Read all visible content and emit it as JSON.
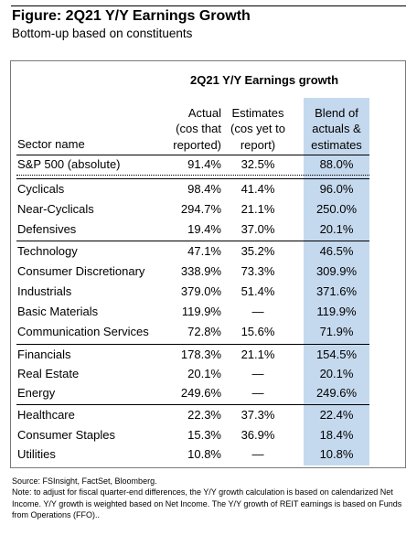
{
  "figure": {
    "title": "Figure: 2Q21 Y/Y Earnings Growth",
    "subtitle": "Bottom-up based on constituents"
  },
  "table": {
    "group_title": "2Q21 Y/Y Earnings growth",
    "col_sector": "Sector name",
    "col_actual": [
      "Actual",
      "(cos that",
      "reported)"
    ],
    "col_estimates": [
      "Estimates",
      "(cos yet to",
      "report)"
    ],
    "col_blend": [
      "Blend of",
      "actuals &",
      "estimates"
    ],
    "highlight_color": "#c5d9ee",
    "rows": [
      {
        "name": "S&P 500 (absolute)",
        "actual": "91.4%",
        "estimates": "32.5%",
        "blend": "88.0%"
      },
      {
        "name": "Cyclicals",
        "actual": "98.4%",
        "estimates": "41.4%",
        "blend": "96.0%"
      },
      {
        "name": "Near-Cyclicals",
        "actual": "294.7%",
        "estimates": "21.1%",
        "blend": "250.0%"
      },
      {
        "name": "Defensives",
        "actual": "19.4%",
        "estimates": "37.0%",
        "blend": "20.1%"
      },
      {
        "name": "Technology",
        "actual": "47.1%",
        "estimates": "35.2%",
        "blend": "46.5%"
      },
      {
        "name": "Consumer Discretionary",
        "actual": "338.9%",
        "estimates": "73.3%",
        "blend": "309.9%"
      },
      {
        "name": "Industrials",
        "actual": "379.0%",
        "estimates": "51.4%",
        "blend": "371.6%"
      },
      {
        "name": "Basic Materials",
        "actual": "119.9%",
        "estimates": "—",
        "blend": "119.9%"
      },
      {
        "name": "Communication Services",
        "actual": "72.8%",
        "estimates": "15.6%",
        "blend": "71.9%"
      },
      {
        "name": "Financials",
        "actual": "178.3%",
        "estimates": "21.1%",
        "blend": "154.5%"
      },
      {
        "name": "Real Estate",
        "actual": "20.1%",
        "estimates": "—",
        "blend": "20.1%"
      },
      {
        "name": "Energy",
        "actual": "249.6%",
        "estimates": "—",
        "blend": "249.6%"
      },
      {
        "name": "Healthcare",
        "actual": "22.3%",
        "estimates": "37.3%",
        "blend": "22.4%"
      },
      {
        "name": "Consumer Staples",
        "actual": "15.3%",
        "estimates": "36.9%",
        "blend": "18.4%"
      },
      {
        "name": "Utilities",
        "actual": "10.8%",
        "estimates": "—",
        "blend": "10.8%"
      }
    ]
  },
  "notes": {
    "source": "Source: FSInsight, FactSet, Bloomberg.",
    "note": "Note: to adjust for fiscal quarter-end differences, the Y/Y growth calculation is based on calendarized Net Income. Y/Y growth is weighted based on Net Income. The Y/Y growth of REIT earnings is based on Funds from Operations (FFO).."
  }
}
